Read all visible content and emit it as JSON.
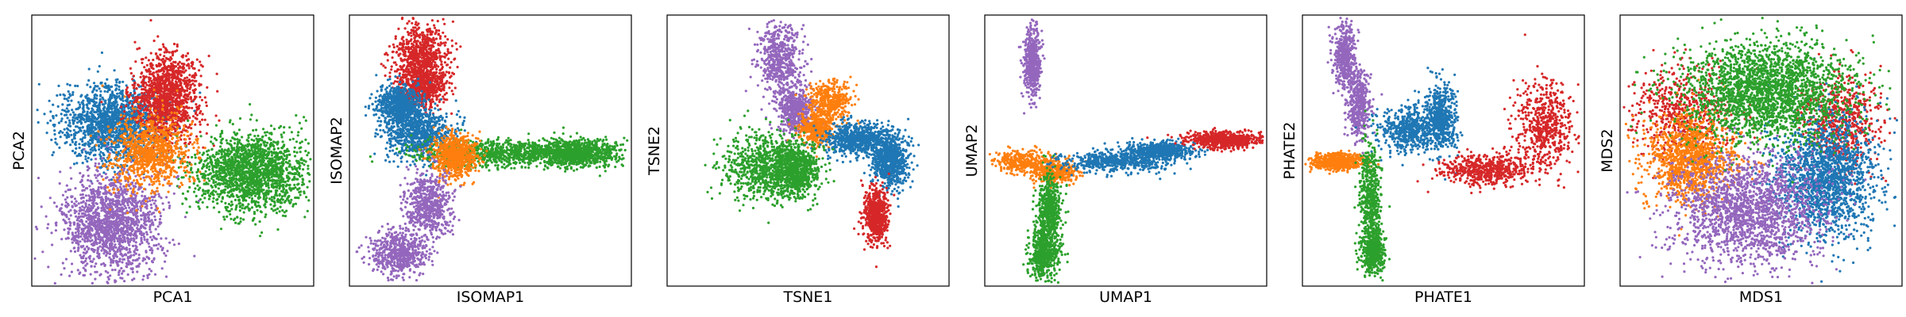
{
  "colors": {
    "blue": "#1f77b4",
    "orange": "#ff7f0e",
    "green": "#2ca02c",
    "red": "#d62728",
    "purple": "#9467bd",
    "frame": "#000000"
  },
  "chart_data": [
    {
      "type": "scatter",
      "xlabel": "PCA1",
      "ylabel": "PCA2",
      "xlim": [
        0,
        1
      ],
      "ylim": [
        0,
        1
      ],
      "grid": false,
      "ticks": false,
      "series": [
        {
          "color": "blue",
          "points": 1600,
          "clusters": [
            [
              0.29,
              0.6,
              0.09,
              0.07
            ]
          ]
        },
        {
          "color": "red",
          "points": 1300,
          "clusters": [
            [
              0.48,
              0.7,
              0.06,
              0.08
            ]
          ]
        },
        {
          "color": "green",
          "points": 1800,
          "clusters": [
            [
              0.78,
              0.42,
              0.1,
              0.07
            ]
          ]
        },
        {
          "color": "purple",
          "points": 1600,
          "clusters": [
            [
              0.28,
              0.23,
              0.09,
              0.09
            ]
          ]
        },
        {
          "color": "orange",
          "points": 900,
          "clusters": [
            [
              0.42,
              0.49,
              0.07,
              0.07
            ]
          ]
        }
      ]
    },
    {
      "type": "scatter",
      "xlabel": "ISOMAP1",
      "ylabel": "ISOMAP2",
      "xlim": [
        0,
        1
      ],
      "ylim": [
        0,
        1
      ],
      "grid": false,
      "ticks": false,
      "series": [
        {
          "color": "red",
          "points": 1300,
          "clusters": [
            [
              0.25,
              0.85,
              0.05,
              0.06
            ],
            [
              0.26,
              0.74,
              0.04,
              0.04
            ]
          ]
        },
        {
          "color": "blue",
          "points": 1500,
          "clusters": [
            [
              0.18,
              0.66,
              0.04,
              0.04
            ],
            [
              0.25,
              0.56,
              0.06,
              0.05
            ]
          ]
        },
        {
          "color": "green",
          "points": 1800,
          "clusters": [
            [
              0.55,
              0.49,
              0.15,
              0.025
            ],
            [
              0.8,
              0.49,
              0.08,
              0.025
            ]
          ]
        },
        {
          "color": "orange",
          "points": 700,
          "clusters": [
            [
              0.38,
              0.48,
              0.04,
              0.04
            ]
          ]
        },
        {
          "color": "purple",
          "points": 1200,
          "clusters": [
            [
              0.28,
              0.3,
              0.04,
              0.06
            ],
            [
              0.18,
              0.12,
              0.05,
              0.04
            ]
          ]
        }
      ]
    },
    {
      "type": "scatter",
      "xlabel": "TSNE1",
      "ylabel": "TSNE2",
      "xlim": [
        0,
        1
      ],
      "ylim": [
        0,
        1
      ],
      "grid": false,
      "ticks": false,
      "series": [
        {
          "color": "purple",
          "points": 1100,
          "clusters": [
            [
              0.4,
              0.83,
              0.04,
              0.07
            ],
            [
              0.46,
              0.65,
              0.03,
              0.04
            ]
          ]
        },
        {
          "color": "orange",
          "points": 800,
          "clusters": [
            [
              0.58,
              0.68,
              0.04,
              0.04
            ],
            [
              0.53,
              0.58,
              0.03,
              0.03
            ]
          ]
        },
        {
          "color": "blue",
          "points": 1500,
          "clusters": [
            [
              0.68,
              0.54,
              0.06,
              0.03
            ],
            [
              0.79,
              0.46,
              0.03,
              0.05
            ]
          ]
        },
        {
          "color": "red",
          "points": 700,
          "clusters": [
            [
              0.74,
              0.26,
              0.02,
              0.05
            ]
          ]
        },
        {
          "color": "green",
          "points": 1500,
          "clusters": [
            [
              0.34,
              0.44,
              0.07,
              0.06
            ],
            [
              0.46,
              0.43,
              0.04,
              0.05
            ]
          ]
        }
      ]
    },
    {
      "type": "scatter",
      "xlabel": "UMAP1",
      "ylabel": "UMAP2",
      "xlim": [
        0,
        1
      ],
      "ylim": [
        0,
        1
      ],
      "grid": false,
      "ticks": false,
      "series": [
        {
          "color": "purple",
          "points": 500,
          "clusters": [
            [
              0.17,
              0.83,
              0.015,
              0.06
            ]
          ]
        },
        {
          "color": "orange",
          "points": 700,
          "clusters": [
            [
              0.13,
              0.46,
              0.05,
              0.02
            ],
            [
              0.25,
              0.42,
              0.04,
              0.02
            ]
          ]
        },
        {
          "color": "blue",
          "points": 1200,
          "clusters": [
            [
              0.48,
              0.46,
              0.1,
              0.02
            ],
            [
              0.62,
              0.5,
              0.06,
              0.015
            ]
          ]
        },
        {
          "color": "red",
          "points": 700,
          "clusters": [
            [
              0.85,
              0.54,
              0.07,
              0.015
            ]
          ]
        },
        {
          "color": "green",
          "points": 1100,
          "clusters": [
            [
              0.23,
              0.28,
              0.02,
              0.06
            ],
            [
              0.21,
              0.12,
              0.025,
              0.05
            ]
          ]
        }
      ]
    },
    {
      "type": "scatter",
      "xlabel": "PHATE1",
      "ylabel": "PHATE2",
      "xlim": [
        0,
        1
      ],
      "ylim": [
        0,
        1
      ],
      "grid": false,
      "ticks": false,
      "series": [
        {
          "color": "purple",
          "points": 900,
          "clusters": [
            [
              0.15,
              0.85,
              0.02,
              0.06
            ],
            [
              0.2,
              0.67,
              0.02,
              0.06
            ]
          ]
        },
        {
          "color": "orange",
          "points": 600,
          "clusters": [
            [
              0.12,
              0.46,
              0.05,
              0.015
            ]
          ]
        },
        {
          "color": "blue",
          "points": 1100,
          "clusters": [
            [
              0.37,
              0.58,
              0.05,
              0.04
            ],
            [
              0.49,
              0.62,
              0.03,
              0.06
            ]
          ]
        },
        {
          "color": "red",
          "points": 1100,
          "clusters": [
            [
              0.65,
              0.43,
              0.08,
              0.03
            ],
            [
              0.86,
              0.6,
              0.05,
              0.08
            ]
          ]
        },
        {
          "color": "green",
          "points": 1000,
          "clusters": [
            [
              0.24,
              0.33,
              0.02,
              0.1
            ],
            [
              0.25,
              0.13,
              0.02,
              0.04
            ]
          ]
        }
      ]
    },
    {
      "type": "scatter",
      "xlabel": "MDS1",
      "ylabel": "MDS2",
      "xlim": [
        0,
        1
      ],
      "ylim": [
        0,
        1
      ],
      "grid": false,
      "ticks": false,
      "series": [
        {
          "color": "red",
          "points": 1200,
          "clusters": [
            [
              0.22,
              0.64,
              0.09,
              0.08
            ],
            [
              0.79,
              0.61,
              0.07,
              0.08
            ]
          ]
        },
        {
          "color": "orange",
          "points": 1200,
          "clusters": [
            [
              0.25,
              0.47,
              0.08,
              0.08
            ]
          ]
        },
        {
          "color": "blue",
          "points": 1700,
          "clusters": [
            [
              0.73,
              0.4,
              0.09,
              0.11
            ]
          ]
        },
        {
          "color": "purple",
          "points": 1800,
          "clusters": [
            [
              0.45,
              0.28,
              0.13,
              0.1
            ]
          ]
        },
        {
          "color": "green",
          "points": 2300,
          "clusters": [
            [
              0.52,
              0.72,
              0.15,
              0.09
            ]
          ]
        }
      ]
    }
  ]
}
